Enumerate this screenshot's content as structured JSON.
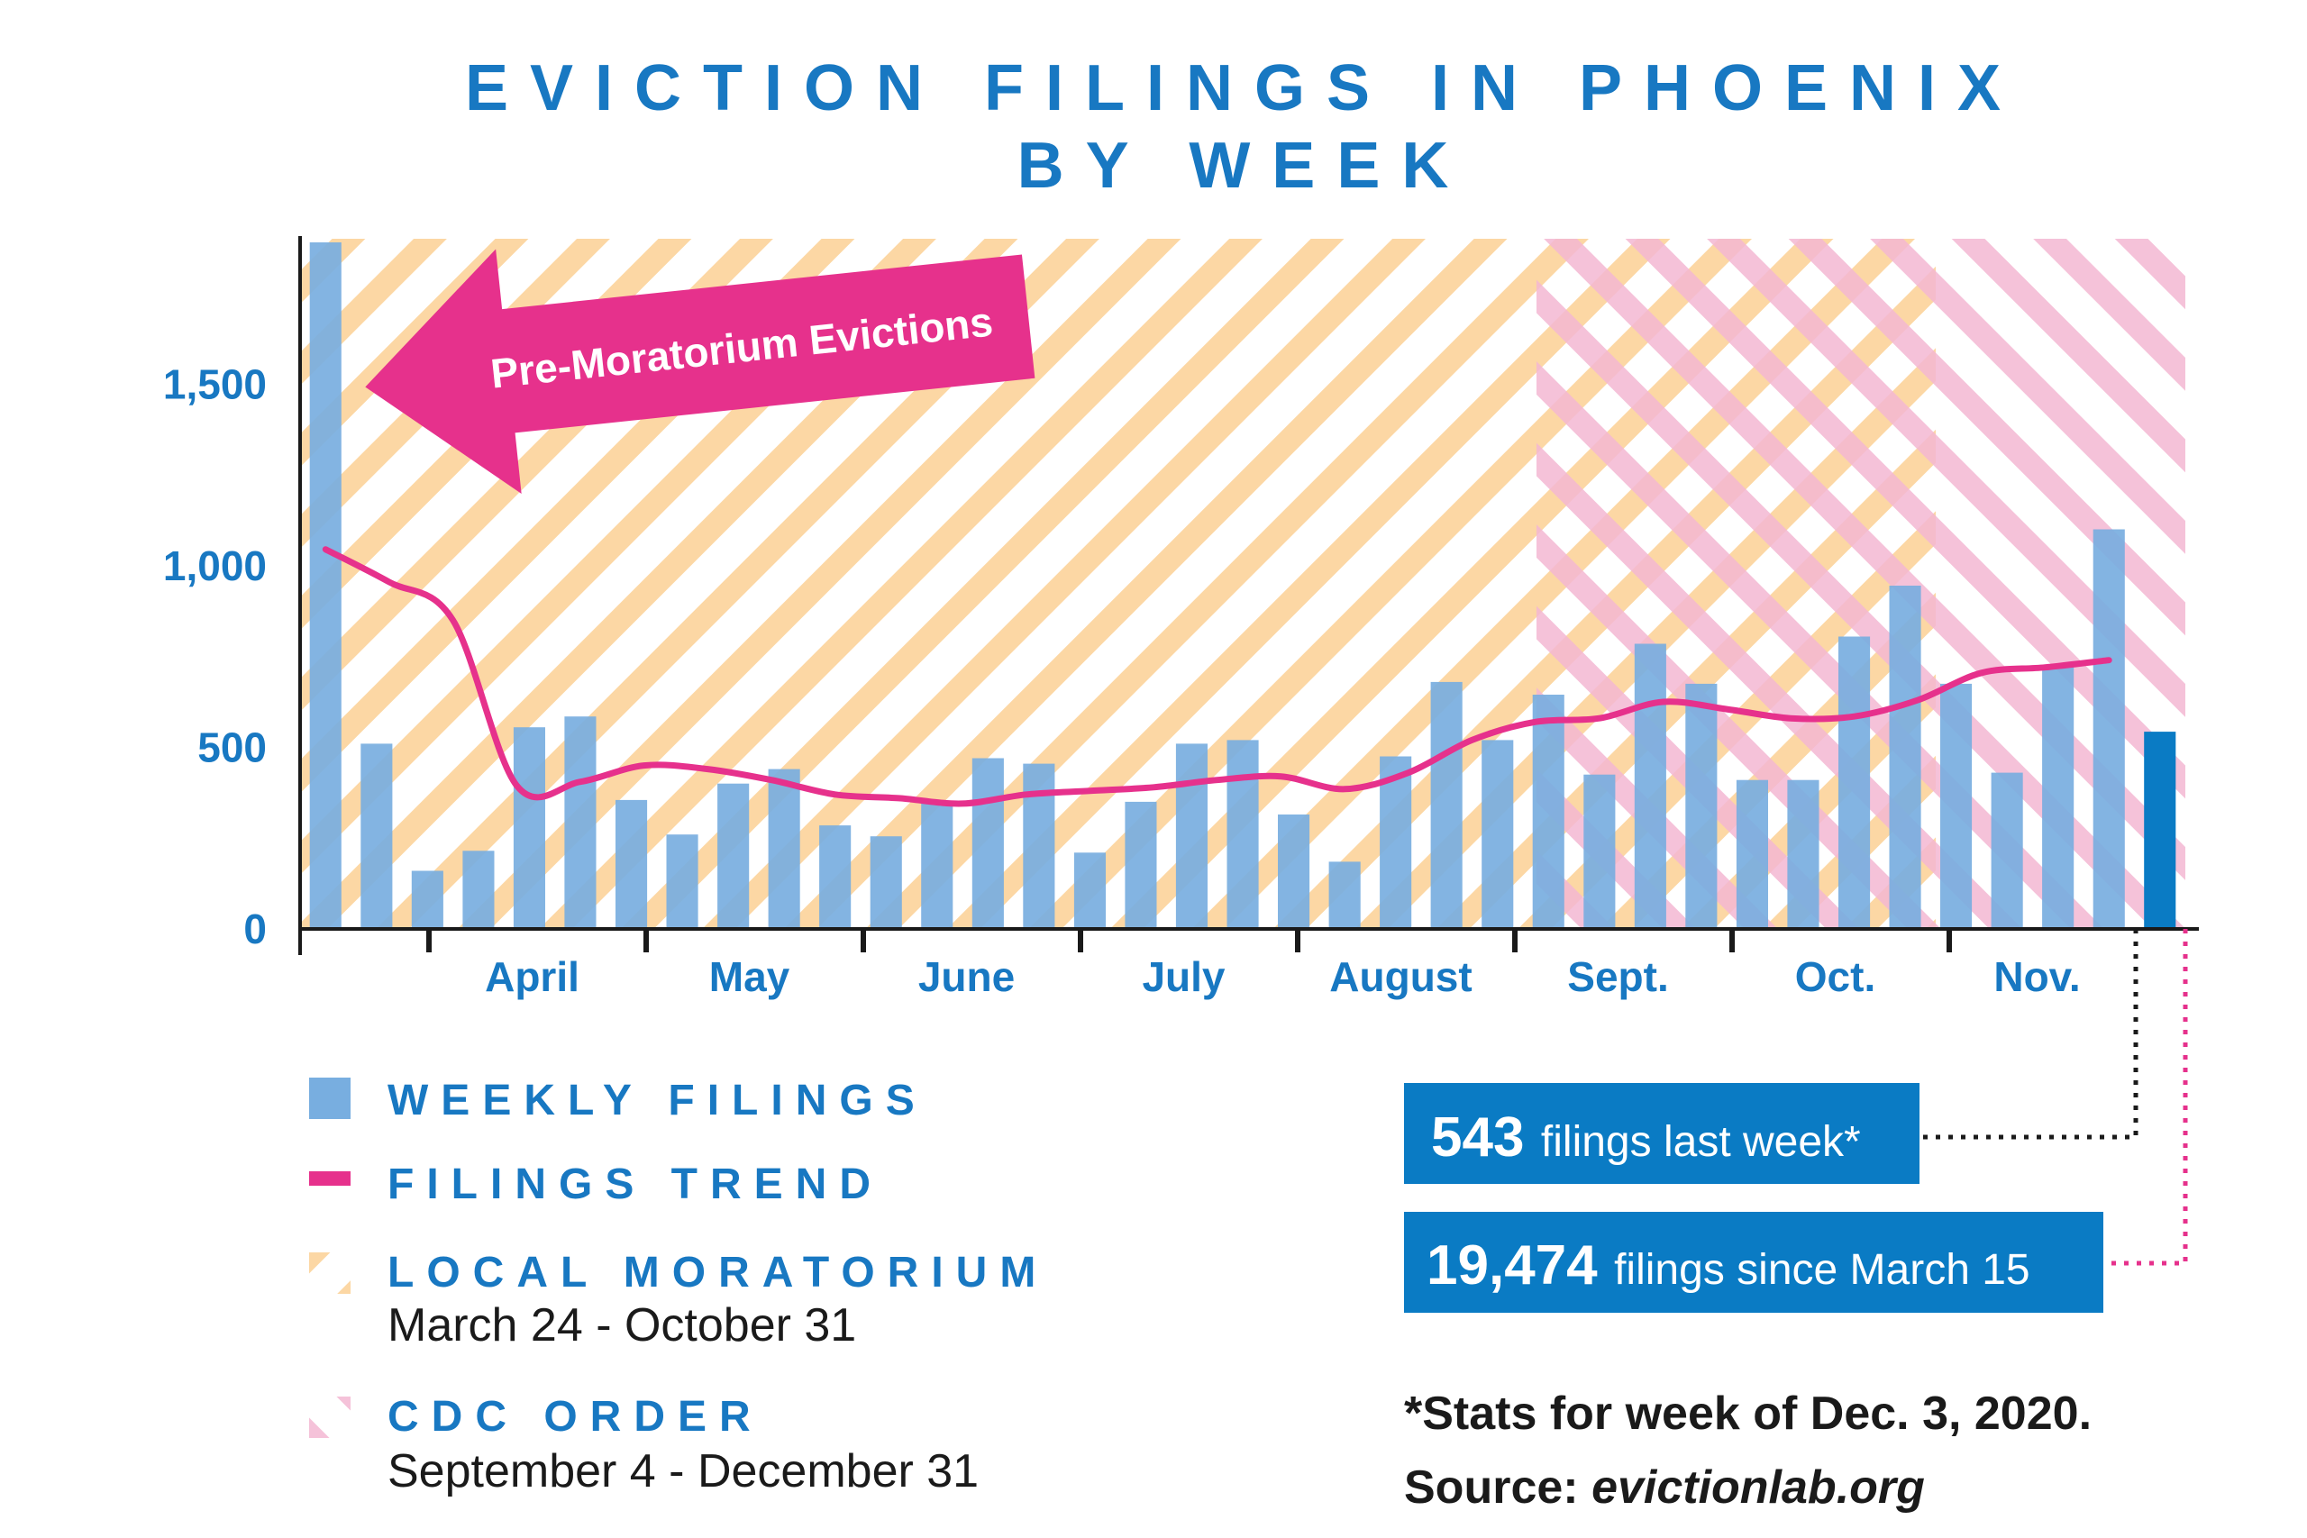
{
  "chart_data": {
    "type": "bar",
    "title_line1": "EVICTION FILINGS IN PHOENIX",
    "title_line2": "BY WEEK",
    "y_ticks": [
      "0",
      "500",
      "1,000",
      "1,500"
    ],
    "y_tick_values": [
      0,
      500,
      1000,
      1500
    ],
    "ylim": [
      0,
      1900
    ],
    "month_labels": [
      "April",
      "May",
      "June",
      "July",
      "August",
      "Sept.",
      "Oct.",
      "Nov."
    ],
    "series": [
      {
        "name": "WEEKLY FILINGS",
        "values": [
          1890,
          510,
          160,
          215,
          555,
          585,
          355,
          260,
          400,
          440,
          285,
          255,
          345,
          470,
          455,
          210,
          350,
          510,
          520,
          315,
          185,
          475,
          680,
          520,
          645,
          425,
          785,
          675,
          410,
          410,
          805,
          945,
          675,
          430,
          725,
          1100,
          543
        ]
      },
      {
        "name": "FILINGS TREND",
        "values": [
          1045,
          955,
          850,
          395,
          405,
          450,
          440,
          410,
          370,
          360,
          345,
          370,
          380,
          390,
          410,
          420,
          385,
          430,
          520,
          570,
          580,
          625,
          605,
          580,
          585,
          630,
          705,
          720,
          740
        ]
      }
    ],
    "colors": {
      "bars": "#78aee0",
      "last_bar": "#0a7bc4",
      "trend": "#e6318c",
      "moratorium": "#fcd7a4",
      "cdc": "#f4b8d3",
      "accent": "#1878c2",
      "callout_bg": "#0a7bc4"
    },
    "annotation": "Pre-Moratorium Evictions",
    "grid": false
  },
  "legend": {
    "weekly": "WEEKLY FILINGS",
    "trend": "FILINGS TREND",
    "local": "LOCAL MORATORIUM",
    "local_dates": "March 24 - October 31",
    "cdc": "CDC ORDER",
    "cdc_dates": "September 4 - December 31"
  },
  "callouts": {
    "last_week_num": "543",
    "last_week_text": "filings last week*",
    "since_num": "19,474",
    "since_text": "filings since March 15"
  },
  "footnote": {
    "line1": "*Stats for week of Dec. 3, 2020.",
    "line2_prefix": "Source: ",
    "line2_link": "evictionlab.org"
  }
}
